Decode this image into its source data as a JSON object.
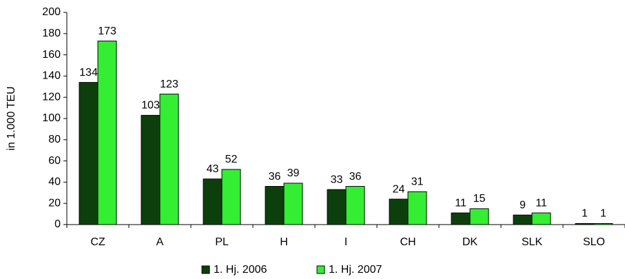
{
  "chart_data": {
    "type": "bar",
    "y_label": "in 1.000 TEU",
    "categories": [
      "CZ",
      "A",
      "PL",
      "H",
      "I",
      "CH",
      "DK",
      "SLK",
      "SLO"
    ],
    "series": [
      {
        "name": "1. Hj. 2006",
        "color": "#0d3f0d",
        "values": [
          134,
          103,
          43,
          36,
          33,
          24,
          11,
          9,
          1
        ]
      },
      {
        "name": "1. Hj. 2007",
        "color": "#33ee33",
        "values": [
          173,
          123,
          52,
          39,
          36,
          31,
          15,
          11,
          1
        ]
      }
    ],
    "ylim": [
      0,
      200
    ],
    "yticks": [
      0,
      20,
      40,
      60,
      80,
      100,
      120,
      140,
      160,
      180,
      200
    ],
    "grid": false
  }
}
